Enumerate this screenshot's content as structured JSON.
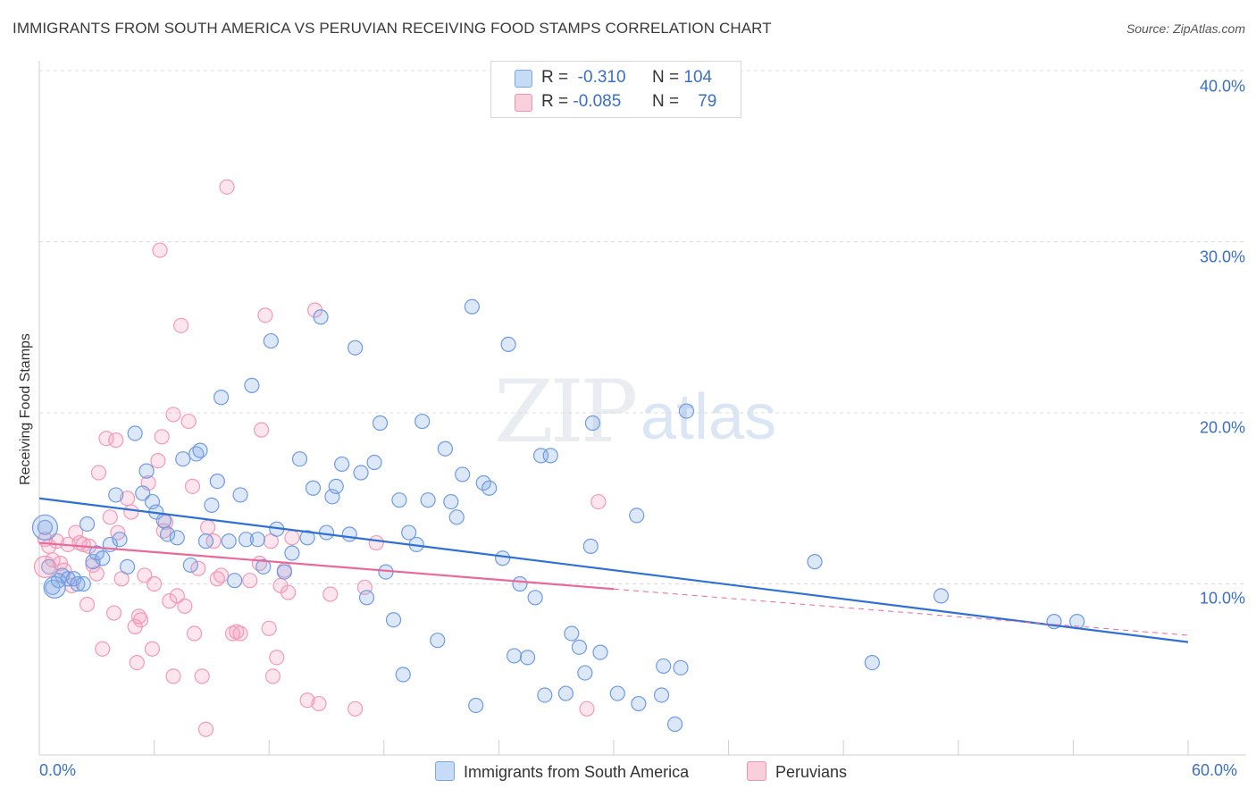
{
  "title": "IMMIGRANTS FROM SOUTH AMERICA VS PERUVIAN RECEIVING FOOD STAMPS CORRELATION CHART",
  "source": "Source: ZipAtlas.com",
  "watermark": {
    "zip": "ZIP",
    "atlas": "atlas"
  },
  "legend": {
    "r_label": "R =",
    "n_label": "N =",
    "series1": {
      "r": "-0.310",
      "n": "104"
    },
    "series2": {
      "r": "-0.085",
      "n": "79"
    }
  },
  "bottom_legend": {
    "series1": "Immigrants from South America",
    "series2": "Peruvians"
  },
  "chart_data": {
    "type": "scatter",
    "title": "IMMIGRANTS FROM SOUTH AMERICA VS PERUVIAN RECEIVING FOOD STAMPS CORRELATION CHART",
    "xlabel": "",
    "ylabel": "Receiving Food Stamps",
    "xlim": [
      0,
      60
    ],
    "ylim": [
      0,
      40
    ],
    "y_ticks": [
      "10.0%",
      "20.0%",
      "30.0%",
      "40.0%"
    ],
    "x_ticks": [
      "0.0%",
      "60.0%"
    ],
    "colors": {
      "series1": "#5b8fd9",
      "series2": "#f07aa0",
      "line1": "#2f6fd6",
      "line2": "#e8699a"
    },
    "series": [
      {
        "name": "Immigrants from South America",
        "trend": {
          "x": [
            0,
            60
          ],
          "y": [
            15.0,
            6.6
          ]
        },
        "points": [
          [
            0.3,
            13.3
          ],
          [
            0.5,
            11.0
          ],
          [
            0.7,
            9.8
          ],
          [
            1.0,
            10.2
          ],
          [
            1.2,
            10.5
          ],
          [
            1.5,
            10.3
          ],
          [
            1.8,
            10.3
          ],
          [
            2.0,
            10.0
          ],
          [
            2.3,
            10.0
          ],
          [
            2.5,
            13.5
          ],
          [
            2.8,
            11.3
          ],
          [
            3.0,
            11.8
          ],
          [
            3.3,
            11.5
          ],
          [
            3.7,
            12.3
          ],
          [
            4.0,
            15.2
          ],
          [
            4.2,
            12.6
          ],
          [
            4.6,
            11.0
          ],
          [
            5.0,
            18.8
          ],
          [
            5.4,
            15.3
          ],
          [
            5.6,
            16.6
          ],
          [
            5.9,
            14.8
          ],
          [
            6.1,
            14.2
          ],
          [
            6.5,
            13.7
          ],
          [
            6.7,
            12.9
          ],
          [
            7.2,
            12.7
          ],
          [
            7.5,
            17.3
          ],
          [
            7.9,
            11.1
          ],
          [
            8.2,
            17.6
          ],
          [
            8.4,
            17.8
          ],
          [
            8.7,
            12.5
          ],
          [
            9.0,
            14.6
          ],
          [
            9.3,
            16.0
          ],
          [
            9.5,
            20.9
          ],
          [
            9.9,
            12.5
          ],
          [
            10.2,
            10.2
          ],
          [
            10.5,
            15.2
          ],
          [
            10.8,
            12.6
          ],
          [
            11.1,
            21.6
          ],
          [
            11.4,
            12.6
          ],
          [
            11.7,
            11.0
          ],
          [
            12.1,
            24.2
          ],
          [
            12.4,
            13.2
          ],
          [
            12.8,
            10.7
          ],
          [
            13.2,
            11.8
          ],
          [
            13.6,
            17.3
          ],
          [
            14.0,
            12.7
          ],
          [
            14.3,
            15.6
          ],
          [
            14.7,
            25.6
          ],
          [
            15.0,
            13.0
          ],
          [
            15.3,
            15.1
          ],
          [
            15.5,
            15.7
          ],
          [
            15.8,
            17.0
          ],
          [
            16.2,
            12.9
          ],
          [
            16.5,
            23.8
          ],
          [
            16.8,
            16.5
          ],
          [
            17.1,
            9.2
          ],
          [
            17.5,
            17.1
          ],
          [
            17.8,
            19.4
          ],
          [
            18.1,
            10.7
          ],
          [
            18.5,
            7.9
          ],
          [
            18.8,
            14.9
          ],
          [
            19.0,
            4.7
          ],
          [
            19.3,
            13.0
          ],
          [
            19.7,
            12.3
          ],
          [
            20.0,
            19.5
          ],
          [
            20.3,
            14.9
          ],
          [
            20.8,
            6.7
          ],
          [
            21.2,
            17.9
          ],
          [
            21.5,
            14.8
          ],
          [
            21.8,
            13.9
          ],
          [
            22.1,
            16.4
          ],
          [
            22.6,
            26.2
          ],
          [
            22.8,
            2.9
          ],
          [
            23.2,
            15.9
          ],
          [
            23.5,
            15.6
          ],
          [
            24.2,
            11.5
          ],
          [
            24.5,
            24.0
          ],
          [
            24.8,
            5.8
          ],
          [
            25.1,
            10.0
          ],
          [
            25.5,
            5.7
          ],
          [
            25.9,
            9.2
          ],
          [
            26.2,
            17.5
          ],
          [
            26.7,
            17.5
          ],
          [
            26.4,
            3.5
          ],
          [
            27.5,
            3.6
          ],
          [
            27.8,
            7.1
          ],
          [
            28.2,
            6.3
          ],
          [
            28.5,
            4.8
          ],
          [
            28.9,
            19.4
          ],
          [
            29.3,
            6.0
          ],
          [
            28.8,
            12.2
          ],
          [
            30.2,
            3.6
          ],
          [
            31.2,
            14.0
          ],
          [
            31.3,
            3.0
          ],
          [
            32.6,
            5.2
          ],
          [
            33.2,
            1.8
          ],
          [
            32.5,
            3.5
          ],
          [
            33.8,
            20.1
          ],
          [
            33.5,
            5.1
          ],
          [
            40.5,
            11.3
          ],
          [
            43.5,
            5.4
          ],
          [
            47.1,
            9.3
          ],
          [
            53.0,
            7.8
          ],
          [
            54.2,
            7.8
          ]
        ]
      },
      {
        "name": "Peruvians",
        "trend": {
          "x": [
            0,
            30
          ],
          "y": [
            12.4,
            9.7
          ]
        },
        "trend_dashed": {
          "x": [
            30,
            60
          ],
          "y": [
            9.7,
            7.0
          ]
        },
        "points": [
          [
            0.3,
            12.6
          ],
          [
            0.5,
            12.2
          ],
          [
            0.7,
            11.4
          ],
          [
            0.9,
            12.5
          ],
          [
            1.1,
            11.2
          ],
          [
            1.3,
            10.8
          ],
          [
            1.5,
            12.3
          ],
          [
            1.7,
            9.9
          ],
          [
            1.9,
            13.0
          ],
          [
            2.1,
            12.4
          ],
          [
            2.3,
            12.3
          ],
          [
            2.5,
            8.8
          ],
          [
            2.6,
            12.2
          ],
          [
            2.8,
            11.1
          ],
          [
            3.0,
            10.6
          ],
          [
            3.1,
            16.5
          ],
          [
            3.3,
            6.2
          ],
          [
            3.5,
            18.5
          ],
          [
            3.7,
            13.9
          ],
          [
            3.9,
            8.3
          ],
          [
            4.0,
            18.4
          ],
          [
            4.1,
            13.0
          ],
          [
            4.3,
            10.3
          ],
          [
            4.6,
            15.0
          ],
          [
            4.8,
            14.2
          ],
          [
            5.0,
            7.5
          ],
          [
            5.1,
            5.4
          ],
          [
            5.3,
            7.9
          ],
          [
            5.5,
            10.5
          ],
          [
            5.7,
            15.9
          ],
          [
            5.9,
            6.2
          ],
          [
            6.0,
            10.0
          ],
          [
            6.2,
            17.2
          ],
          [
            6.3,
            29.5
          ],
          [
            6.4,
            18.6
          ],
          [
            6.6,
            13.6
          ],
          [
            6.8,
            9.0
          ],
          [
            7.0,
            19.9
          ],
          [
            7.2,
            9.3
          ],
          [
            7.0,
            4.6
          ],
          [
            7.4,
            25.1
          ],
          [
            7.6,
            8.7
          ],
          [
            7.8,
            19.5
          ],
          [
            8.0,
            15.7
          ],
          [
            8.1,
            7.1
          ],
          [
            8.3,
            10.9
          ],
          [
            8.5,
            4.6
          ],
          [
            8.8,
            13.3
          ],
          [
            8.7,
            1.5
          ],
          [
            9.1,
            12.5
          ],
          [
            9.3,
            10.3
          ],
          [
            9.5,
            10.5
          ],
          [
            9.8,
            33.2
          ],
          [
            10.1,
            7.1
          ],
          [
            10.3,
            7.2
          ],
          [
            10.5,
            7.1
          ],
          [
            11.0,
            10.2
          ],
          [
            11.5,
            11.2
          ],
          [
            11.6,
            19.0
          ],
          [
            11.8,
            25.7
          ],
          [
            12.0,
            7.4
          ],
          [
            12.2,
            4.6
          ],
          [
            12.4,
            5.7
          ],
          [
            12.6,
            9.9
          ],
          [
            12.8,
            10.8
          ],
          [
            13.0,
            9.5
          ],
          [
            13.2,
            12.7
          ],
          [
            14.0,
            3.2
          ],
          [
            14.4,
            26.0
          ],
          [
            14.6,
            3.0
          ],
          [
            15.2,
            9.4
          ],
          [
            16.5,
            2.7
          ],
          [
            17.0,
            9.8
          ],
          [
            17.6,
            12.4
          ],
          [
            28.6,
            2.7
          ],
          [
            29.2,
            14.8
          ],
          [
            5.2,
            8.1
          ],
          [
            6.5,
            13.1
          ],
          [
            12.1,
            12.5
          ]
        ]
      }
    ]
  }
}
